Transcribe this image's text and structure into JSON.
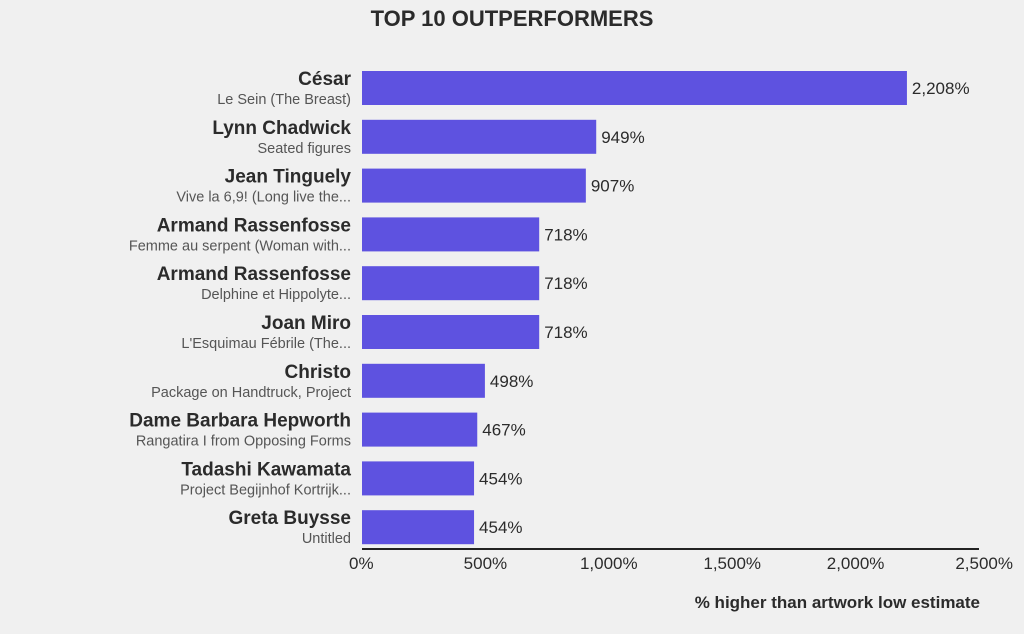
{
  "chart_data": {
    "type": "bar",
    "orientation": "horizontal",
    "title": "TOP 10 OUTPERFORMERS",
    "xlabel": "% higher than artwork low estimate",
    "ylabel": "",
    "xlim": [
      0,
      2500
    ],
    "ticks": [
      0,
      500,
      1000,
      1500,
      2000,
      2500
    ],
    "tick_labels": [
      "0%",
      "500%",
      "1,000%",
      "1,500%",
      "2,000%",
      "2,500%"
    ],
    "grid": false,
    "bar_color": "#5e52e0",
    "categories": [
      {
        "artist": "César",
        "artwork": "Le Sein (The Breast)",
        "value": 2208,
        "label": "2,208%"
      },
      {
        "artist": "Lynn Chadwick",
        "artwork": "Seated figures",
        "value": 949,
        "label": "949%"
      },
      {
        "artist": "Jean Tinguely",
        "artwork": "Vive la 6,9! (Long live the...",
        "value": 907,
        "label": "907%"
      },
      {
        "artist": "Armand Rassenfosse",
        "artwork": "Femme au serpent (Woman with...",
        "value": 718,
        "label": "718%"
      },
      {
        "artist": "Armand Rassenfosse",
        "artwork": "Delphine et Hippolyte...",
        "value": 718,
        "label": "718%"
      },
      {
        "artist": "Joan Miro",
        "artwork": "L'Esquimau Fébrile (The...",
        "value": 718,
        "label": "718%"
      },
      {
        "artist": "Christo",
        "artwork": "Package on Handtruck, Project",
        "value": 498,
        "label": "498%"
      },
      {
        "artist": "Dame Barbara Hepworth",
        "artwork": "Rangatira I from Opposing Forms",
        "value": 467,
        "label": "467%"
      },
      {
        "artist": "Tadashi Kawamata",
        "artwork": "Project Begijnhof Kortrijk...",
        "value": 454,
        "label": "454%"
      },
      {
        "artist": "Greta Buysse",
        "artwork": "Untitled",
        "value": 454,
        "label": "454%"
      }
    ]
  }
}
